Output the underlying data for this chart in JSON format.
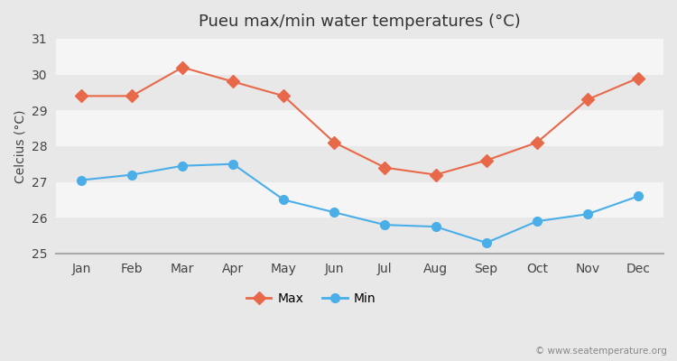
{
  "title": "Pueu max/min water temperatures (°C)",
  "ylabel": "Celcius (°C)",
  "months": [
    "Jan",
    "Feb",
    "Mar",
    "Apr",
    "May",
    "Jun",
    "Jul",
    "Aug",
    "Sep",
    "Oct",
    "Nov",
    "Dec"
  ],
  "max_temps": [
    29.4,
    29.4,
    30.2,
    29.8,
    29.4,
    28.1,
    27.4,
    27.2,
    27.6,
    28.1,
    29.3,
    29.9
  ],
  "min_temps": [
    27.05,
    27.2,
    27.45,
    27.5,
    26.5,
    26.15,
    25.8,
    25.75,
    25.3,
    25.9,
    26.1,
    26.6
  ],
  "max_color": "#e8694a",
  "min_color": "#4aaee8",
  "bg_color": "#e8e8e8",
  "plot_bg_white": "#ffffff",
  "plot_bg_gray": "#e8e8e8",
  "ylim": [
    25,
    31
  ],
  "yticks": [
    25,
    26,
    27,
    28,
    29,
    30,
    31
  ],
  "band_colors": [
    "#e8e8e8",
    "#f5f5f5"
  ],
  "watermark": "© www.seatemperature.org",
  "legend_max": "Max",
  "legend_min": "Min"
}
